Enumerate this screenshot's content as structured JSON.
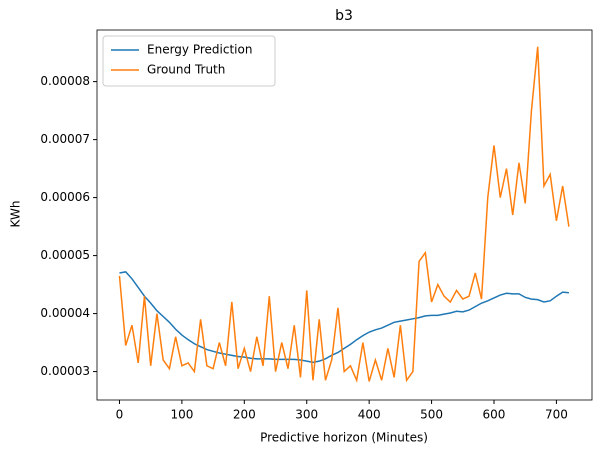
{
  "chart_data": {
    "type": "line",
    "title": "b3",
    "x_label": "Predictive horizon (Minutes)",
    "y_label": "KWh",
    "x": [
      0,
      10,
      20,
      30,
      40,
      50,
      60,
      70,
      80,
      90,
      100,
      110,
      120,
      130,
      140,
      150,
      160,
      170,
      180,
      190,
      200,
      210,
      220,
      230,
      240,
      250,
      260,
      270,
      280,
      290,
      300,
      310,
      320,
      330,
      340,
      350,
      360,
      370,
      380,
      390,
      400,
      410,
      420,
      430,
      440,
      450,
      460,
      470,
      480,
      490,
      500,
      510,
      520,
      530,
      540,
      550,
      560,
      570,
      580,
      590,
      600,
      610,
      620,
      630,
      640,
      650,
      660,
      670,
      680,
      690,
      700,
      710,
      720
    ],
    "series": [
      {
        "name": "Energy Prediction",
        "color": "#1f77b4",
        "values": [
          4.7e-05,
          4.72e-05,
          4.6e-05,
          4.45e-05,
          4.3e-05,
          4.18e-05,
          4.05e-05,
          3.95e-05,
          3.85e-05,
          3.73e-05,
          3.63e-05,
          3.55e-05,
          3.48e-05,
          3.43e-05,
          3.38e-05,
          3.35e-05,
          3.32e-05,
          3.3e-05,
          3.28e-05,
          3.26e-05,
          3.25e-05,
          3.23e-05,
          3.22e-05,
          3.22e-05,
          3.22e-05,
          3.21e-05,
          3.21e-05,
          3.21e-05,
          3.21e-05,
          3.2e-05,
          3.18e-05,
          3.16e-05,
          3.18e-05,
          3.22e-05,
          3.28e-05,
          3.33e-05,
          3.4e-05,
          3.47e-05,
          3.55e-05,
          3.62e-05,
          3.68e-05,
          3.72e-05,
          3.75e-05,
          3.8e-05,
          3.85e-05,
          3.87e-05,
          3.89e-05,
          3.91e-05,
          3.93e-05,
          3.96e-05,
          3.97e-05,
          3.97e-05,
          3.99e-05,
          4.01e-05,
          4.04e-05,
          4.03e-05,
          4.06e-05,
          4.12e-05,
          4.18e-05,
          4.22e-05,
          4.27e-05,
          4.32e-05,
          4.35e-05,
          4.34e-05,
          4.34e-05,
          4.28e-05,
          4.25e-05,
          4.24e-05,
          4.2e-05,
          4.22e-05,
          4.3e-05,
          4.37e-05,
          4.36e-05
        ]
      },
      {
        "name": "Ground Truth",
        "color": "#ff7f0e",
        "values": [
          4.65e-05,
          3.45e-05,
          3.8e-05,
          3.15e-05,
          4.3e-05,
          3.1e-05,
          4e-05,
          3.2e-05,
          3.05e-05,
          3.6e-05,
          3.1e-05,
          3.15e-05,
          3e-05,
          3.9e-05,
          3.1e-05,
          3.05e-05,
          3.5e-05,
          3.1e-05,
          4.2e-05,
          3.05e-05,
          3.4e-05,
          3e-05,
          3.6e-05,
          3.1e-05,
          4.3e-05,
          3e-05,
          3.5e-05,
          3.05e-05,
          3.8e-05,
          2.9e-05,
          4.4e-05,
          2.85e-05,
          3.9e-05,
          2.85e-05,
          3.2e-05,
          4.1e-05,
          3e-05,
          3.1e-05,
          2.85e-05,
          3.5e-05,
          2.83e-05,
          3.2e-05,
          2.85e-05,
          3.4e-05,
          2.9e-05,
          3.8e-05,
          2.85e-05,
          3e-05,
          4.9e-05,
          5.05e-05,
          4.2e-05,
          4.5e-05,
          4.3e-05,
          4.2e-05,
          4.4e-05,
          4.25e-05,
          4.3e-05,
          4.7e-05,
          4.25e-05,
          6e-05,
          6.9e-05,
          6e-05,
          6.5e-05,
          5.7e-05,
          6.6e-05,
          5.9e-05,
          7.5e-05,
          8.6e-05,
          6.2e-05,
          6.4e-05,
          5.6e-05,
          6.2e-05,
          5.5e-05
        ]
      }
    ],
    "xlim": [
      -36,
      757
    ],
    "ylim": [
      2.51e-05,
      8.89e-05
    ],
    "xticks": [
      0,
      100,
      200,
      300,
      400,
      500,
      600,
      700
    ],
    "yticks": [
      3e-05,
      4e-05,
      5e-05,
      6e-05,
      7e-05,
      8e-05
    ],
    "legend": "upper left"
  }
}
